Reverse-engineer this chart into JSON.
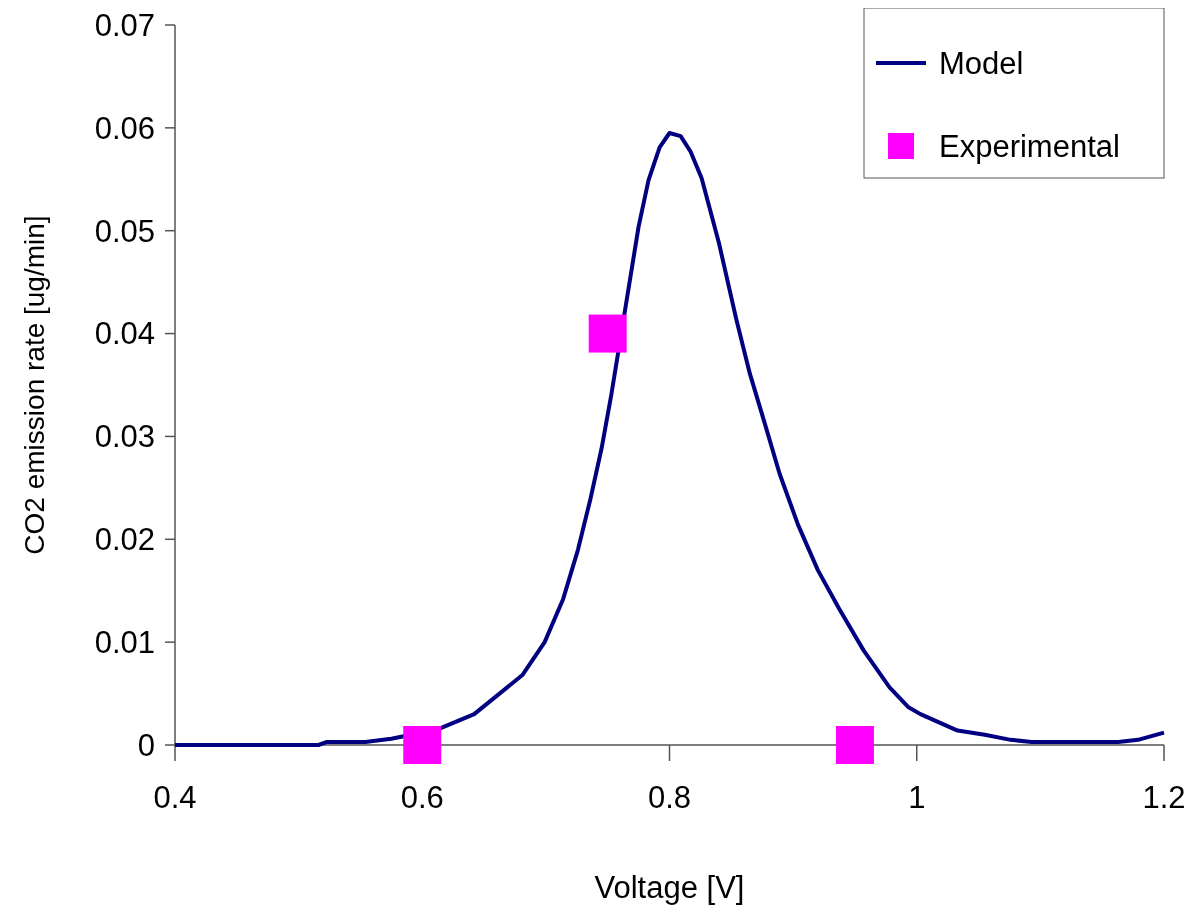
{
  "chart_data": {
    "type": "line",
    "xlabel": "Voltage [V]",
    "ylabel": "CO2 emission rate [ug/min]",
    "xlim": [
      0.4,
      1.2
    ],
    "xticks": [
      0.4,
      0.6,
      0.8,
      1,
      1.2
    ],
    "ylim": [
      0,
      0.07
    ],
    "yticks": [
      0,
      0.01,
      0.02,
      0.03,
      0.04,
      0.05,
      0.06,
      0.07
    ],
    "grid": false,
    "legend": "top right",
    "series": [
      {
        "name": "Model",
        "color": "#000080",
        "line_style": "solid",
        "x": [
          0.4,
          0.516,
          0.523,
          0.554,
          0.575,
          0.612,
          0.642,
          0.681,
          0.699,
          0.714,
          0.726,
          0.736,
          0.745,
          0.753,
          0.775,
          0.783,
          0.792,
          0.8,
          0.809,
          0.817,
          0.826,
          0.84,
          0.854,
          0.865,
          0.877,
          0.889,
          0.904,
          0.92,
          0.937,
          0.957,
          0.978,
          0.993,
          1.003,
          1.033,
          1.055,
          1.076,
          1.093,
          1.163,
          1.179,
          1.2
        ],
        "values": [
          0,
          0,
          0.0003,
          0.0003,
          0.0006,
          0.0015,
          0.003,
          0.0068,
          0.01,
          0.0142,
          0.019,
          0.0239,
          0.0288,
          0.0341,
          0.0504,
          0.0549,
          0.0581,
          0.0595,
          0.0592,
          0.0577,
          0.0551,
          0.0488,
          0.0414,
          0.0361,
          0.0313,
          0.0264,
          0.0214,
          0.017,
          0.0133,
          0.0092,
          0.0056,
          0.0037,
          0.003,
          0.0014,
          0.001,
          0.0005,
          0.0003,
          0.0003,
          0.0005,
          0.0012
        ]
      },
      {
        "name": "Experimental",
        "type": "scatter",
        "color": "#ff00ff",
        "marker": "square",
        "x": [
          0.6,
          0.75,
          0.95
        ],
        "values": [
          0,
          0.04,
          0
        ]
      }
    ]
  }
}
